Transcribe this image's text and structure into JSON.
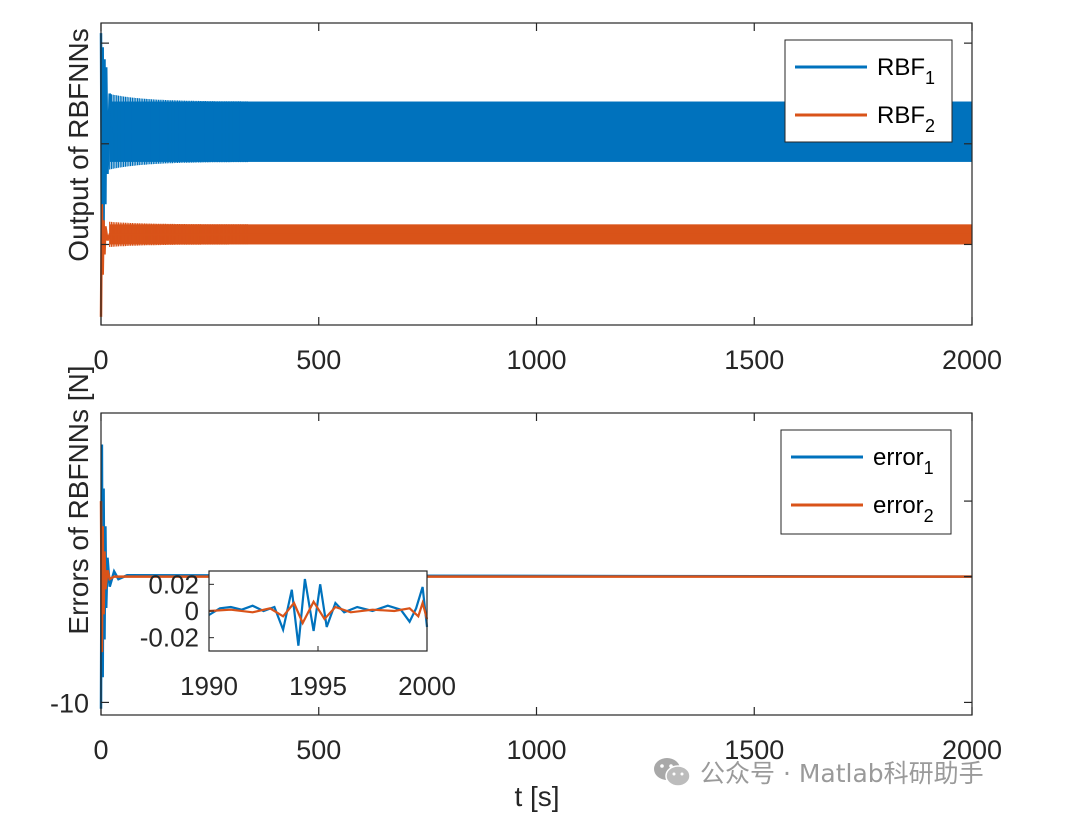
{
  "colors": {
    "series1": "#0072BD",
    "series2": "#D95319",
    "axis": "#262626",
    "grid": "#ffffff"
  },
  "chart_data": [
    {
      "type": "line",
      "title": "",
      "xlabel": "",
      "ylabel": "Output of RBFNNs",
      "xlim": [
        0,
        2000
      ],
      "xticks": [
        0,
        500,
        1000,
        1500,
        2000
      ],
      "legend": {
        "position": "top-right"
      },
      "series": [
        {
          "name": "RBF",
          "sub": "1",
          "color": "#0072BD",
          "mean": 5.6,
          "amplitude": 1.5,
          "x": [
            0,
            2,
            4,
            6,
            8,
            10,
            12,
            15,
            20,
            30,
            2000
          ],
          "y": [
            10.5,
            0,
            9.8,
            1.0,
            9.2,
            2.0,
            8.8,
            3.5,
            7.5,
            5.6,
            5.6
          ]
        },
        {
          "name": "RBF",
          "sub": "2",
          "color": "#D95319",
          "mean": 0.5,
          "amplitude": 0.5,
          "x": [
            0,
            2,
            4,
            6,
            8,
            10,
            15,
            20,
            2000
          ],
          "y": [
            -3.6,
            2.0,
            -1.5,
            1.2,
            -0.5,
            0.9,
            0.2,
            0.5,
            0.5
          ]
        }
      ]
    },
    {
      "type": "line",
      "title": "",
      "xlabel": "t [s]",
      "ylabel": "Errors of RBFNNs [N]",
      "xlim": [
        0,
        2000
      ],
      "ylim": [
        -11,
        13
      ],
      "xticks": [
        0,
        500,
        1000,
        1500,
        2000
      ],
      "yticks": [
        -10
      ],
      "legend": {
        "position": "top-right"
      },
      "series": [
        {
          "name": "error",
          "sub": "1",
          "color": "#0072BD",
          "x": [
            0,
            2,
            4,
            6,
            8,
            10,
            12,
            15,
            20,
            30,
            40,
            60,
            2000
          ],
          "y": [
            -10.5,
            10.5,
            -8.0,
            7.0,
            -5.0,
            4.0,
            -2.5,
            1.5,
            -0.8,
            0.4,
            -0.2,
            0.1,
            0.0
          ]
        },
        {
          "name": "error",
          "sub": "2",
          "color": "#D95319",
          "x": [
            0,
            2,
            4,
            6,
            8,
            10,
            15,
            20,
            30,
            2000
          ],
          "y": [
            6.0,
            -6.0,
            4.0,
            -3.0,
            2.0,
            -1.0,
            0.5,
            -0.2,
            0.0,
            0.0
          ]
        }
      ]
    },
    {
      "type": "line",
      "title": "",
      "xlabel": "",
      "ylabel": "",
      "xlim": [
        1990,
        2000
      ],
      "ylim": [
        -0.03,
        0.03
      ],
      "xticks": [
        1990,
        1995,
        2000
      ],
      "yticks": [
        0.02,
        0,
        -0.02
      ],
      "yticklabels": [
        "0.02",
        "0",
        "-0.02"
      ],
      "series": [
        {
          "name": "error",
          "sub": "1",
          "color": "#0072BD",
          "x": [
            1990,
            1990.5,
            1991,
            1991.5,
            1992,
            1992.5,
            1993,
            1993.4,
            1993.8,
            1994.1,
            1994.4,
            1994.8,
            1995.1,
            1995.4,
            1995.8,
            1996.2,
            1996.8,
            1997.5,
            1998.2,
            1998.8,
            1999.2,
            1999.5,
            1999.8,
            2000
          ],
          "y": [
            -0.003,
            0.002,
            0.003,
            0.001,
            0.004,
            0.0,
            0.003,
            -0.014,
            0.016,
            -0.026,
            0.024,
            -0.015,
            0.02,
            -0.012,
            0.006,
            -0.001,
            0.003,
            0.0,
            0.004,
            0.001,
            -0.008,
            0.002,
            0.018,
            -0.012
          ]
        },
        {
          "name": "error",
          "sub": "2",
          "color": "#D95319",
          "x": [
            1990,
            1991,
            1992,
            1992.8,
            1993.4,
            1993.9,
            1994.3,
            1994.8,
            1995.3,
            1995.8,
            1996.5,
            1997.5,
            1998.5,
            1999.2,
            1999.6,
            1999.8,
            2000
          ],
          "y": [
            0.0,
            0.001,
            -0.001,
            0.002,
            -0.004,
            0.006,
            -0.009,
            0.007,
            -0.006,
            0.003,
            -0.001,
            0.001,
            0.0,
            0.002,
            -0.004,
            0.006,
            -0.006
          ]
        }
      ]
    }
  ],
  "watermark": {
    "icon": "wechat-icon",
    "text": "公众号 · Matlab科研助手"
  }
}
